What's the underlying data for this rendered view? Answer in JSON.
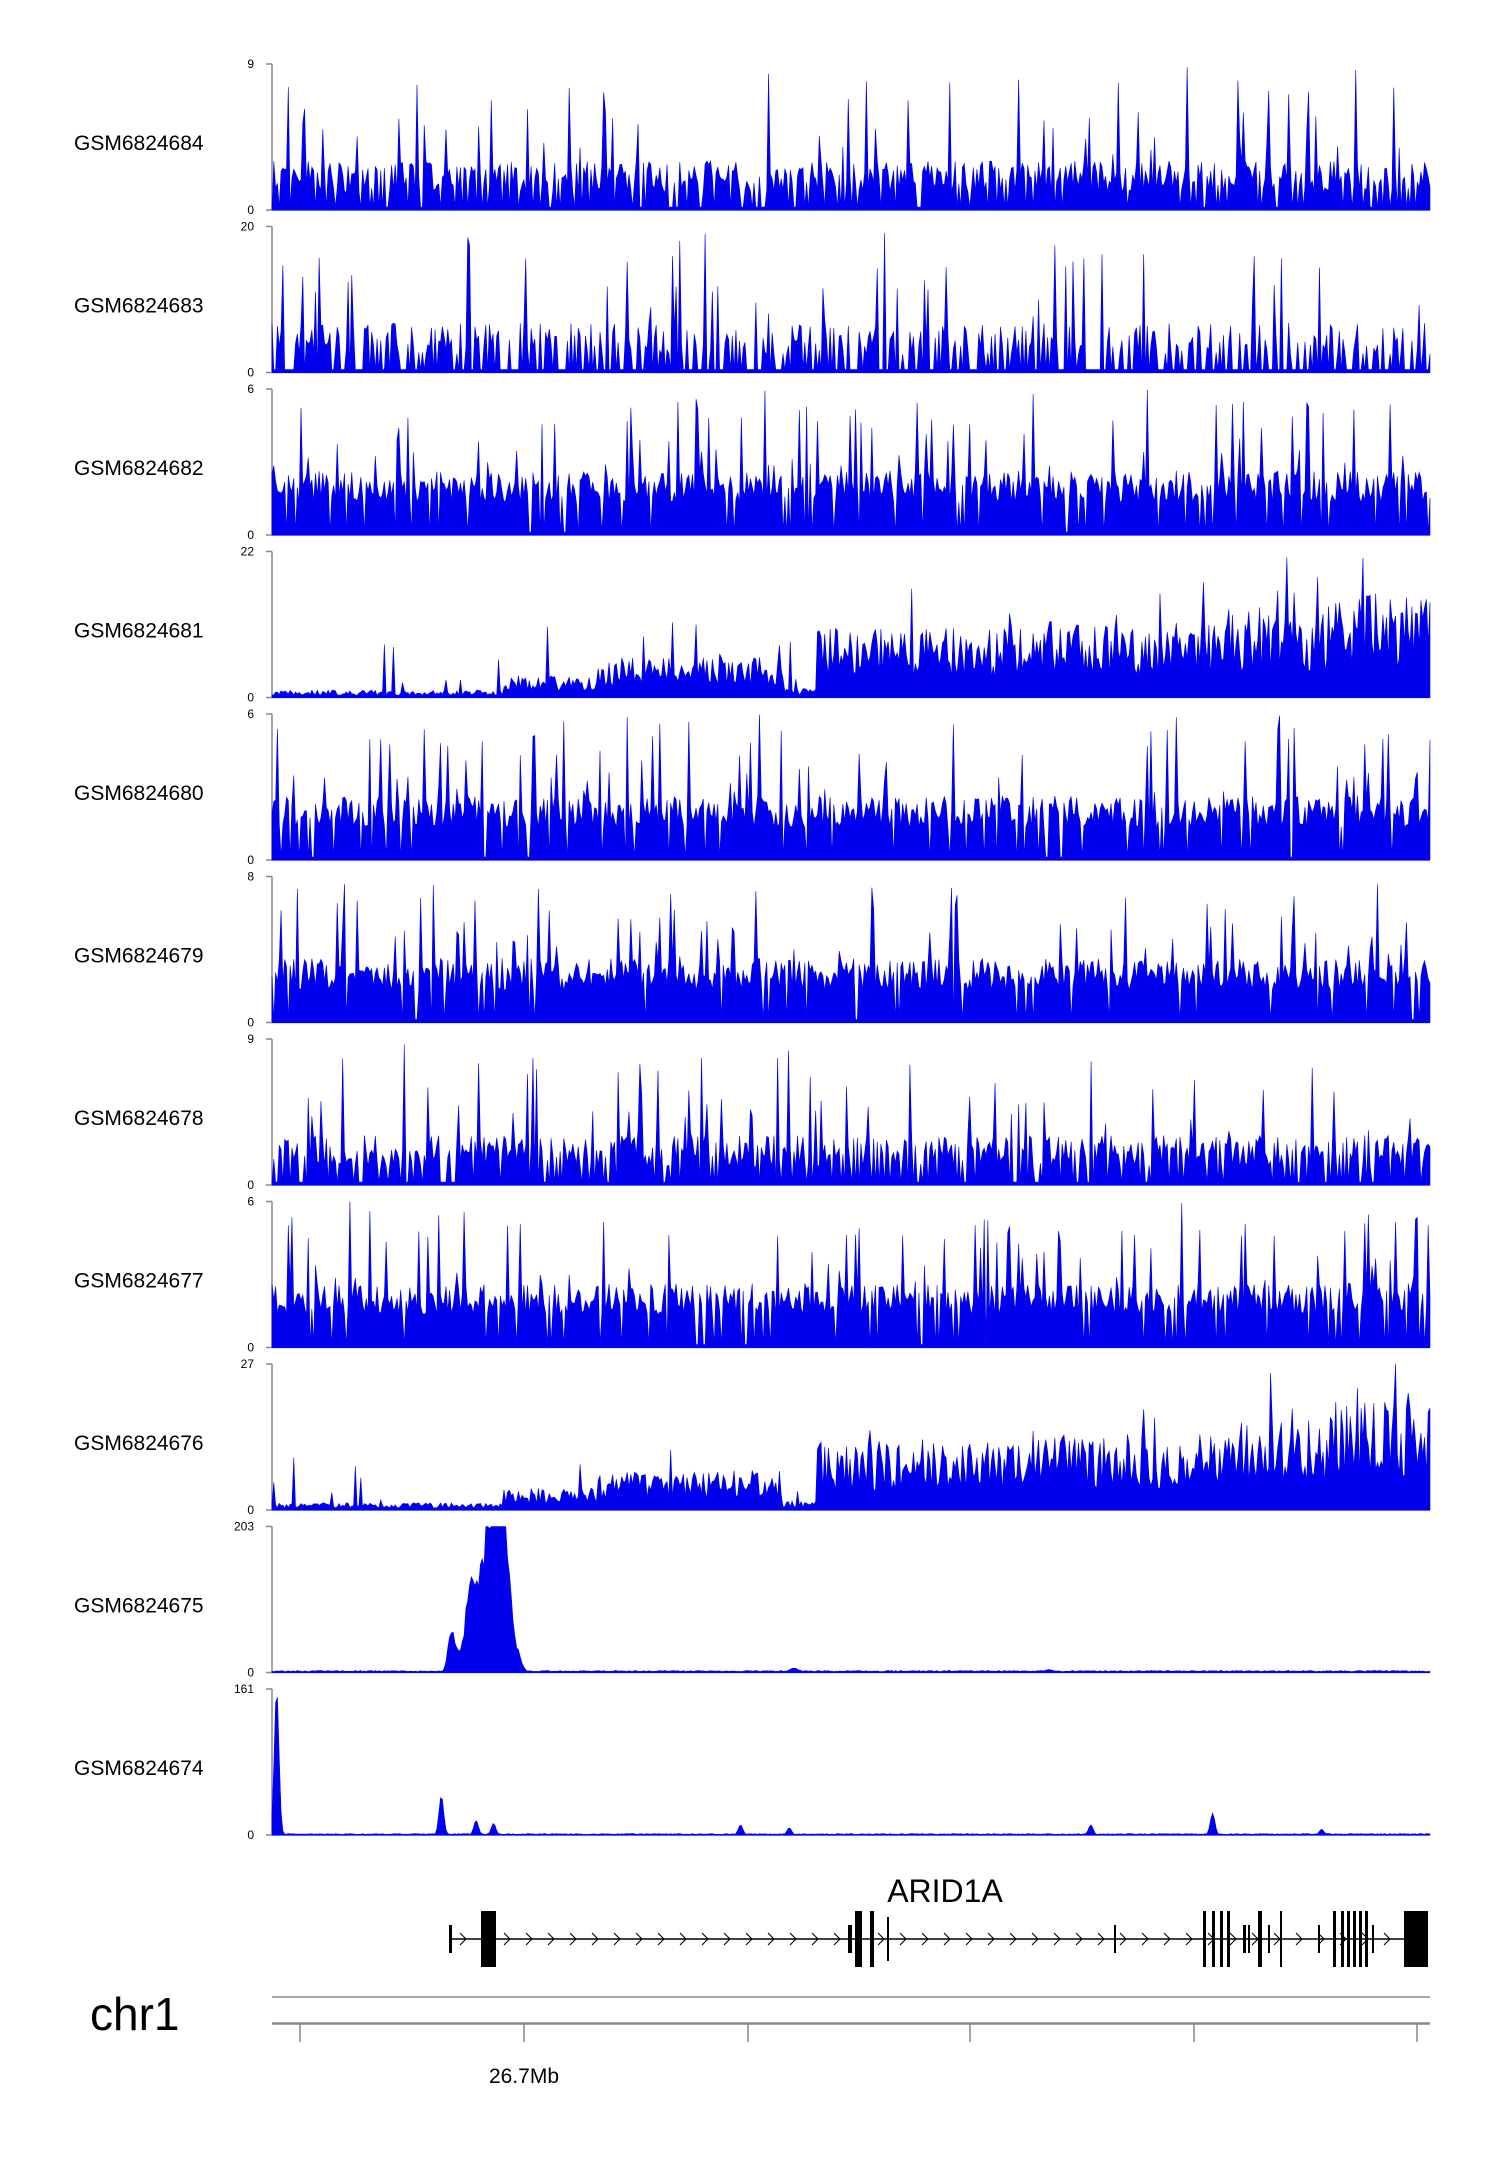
{
  "chart_data": {
    "type": "area",
    "title": "",
    "xlabel": "",
    "chromosome": "chr1",
    "gene": {
      "name": "ARID1A",
      "strand": "+"
    },
    "x_axis": {
      "tick_labels": [
        {
          "value": "26.7Mb",
          "index": 1
        }
      ],
      "tick_count": 6
    },
    "fill_color": "#0000ee",
    "tracks": [
      {
        "name": "GSM6824684",
        "ymax": 9,
        "ymin": 0,
        "profile": "sparse",
        "seed": 11
      },
      {
        "name": "GSM6824683",
        "ymax": 20,
        "ymin": 0,
        "profile": "sparse-gappy",
        "seed": 23
      },
      {
        "name": "GSM6824682",
        "ymax": 6,
        "ymin": 0,
        "profile": "dense",
        "seed": 37
      },
      {
        "name": "GSM6824681",
        "ymax": 22,
        "ymin": 0,
        "profile": "rising",
        "seed": 41
      },
      {
        "name": "GSM6824680",
        "ymax": 6,
        "ymin": 0,
        "profile": "dense",
        "seed": 53
      },
      {
        "name": "GSM6824679",
        "ymax": 8,
        "ymin": 0,
        "profile": "dense",
        "seed": 67
      },
      {
        "name": "GSM6824678",
        "ymax": 9,
        "ymin": 0,
        "profile": "sparse",
        "seed": 71
      },
      {
        "name": "GSM6824677",
        "ymax": 6,
        "ymin": 0,
        "profile": "dense",
        "seed": 83
      },
      {
        "name": "GSM6824676",
        "ymax": 27,
        "ymin": 0,
        "profile": "rising",
        "seed": 97
      },
      {
        "name": "GSM6824675",
        "ymax": 203,
        "ymin": 0,
        "profile": "peak675",
        "seed": 101
      },
      {
        "name": "GSM6824674",
        "ymax": 161,
        "ymin": 0,
        "profile": "peak674",
        "seed": 113
      }
    ]
  }
}
